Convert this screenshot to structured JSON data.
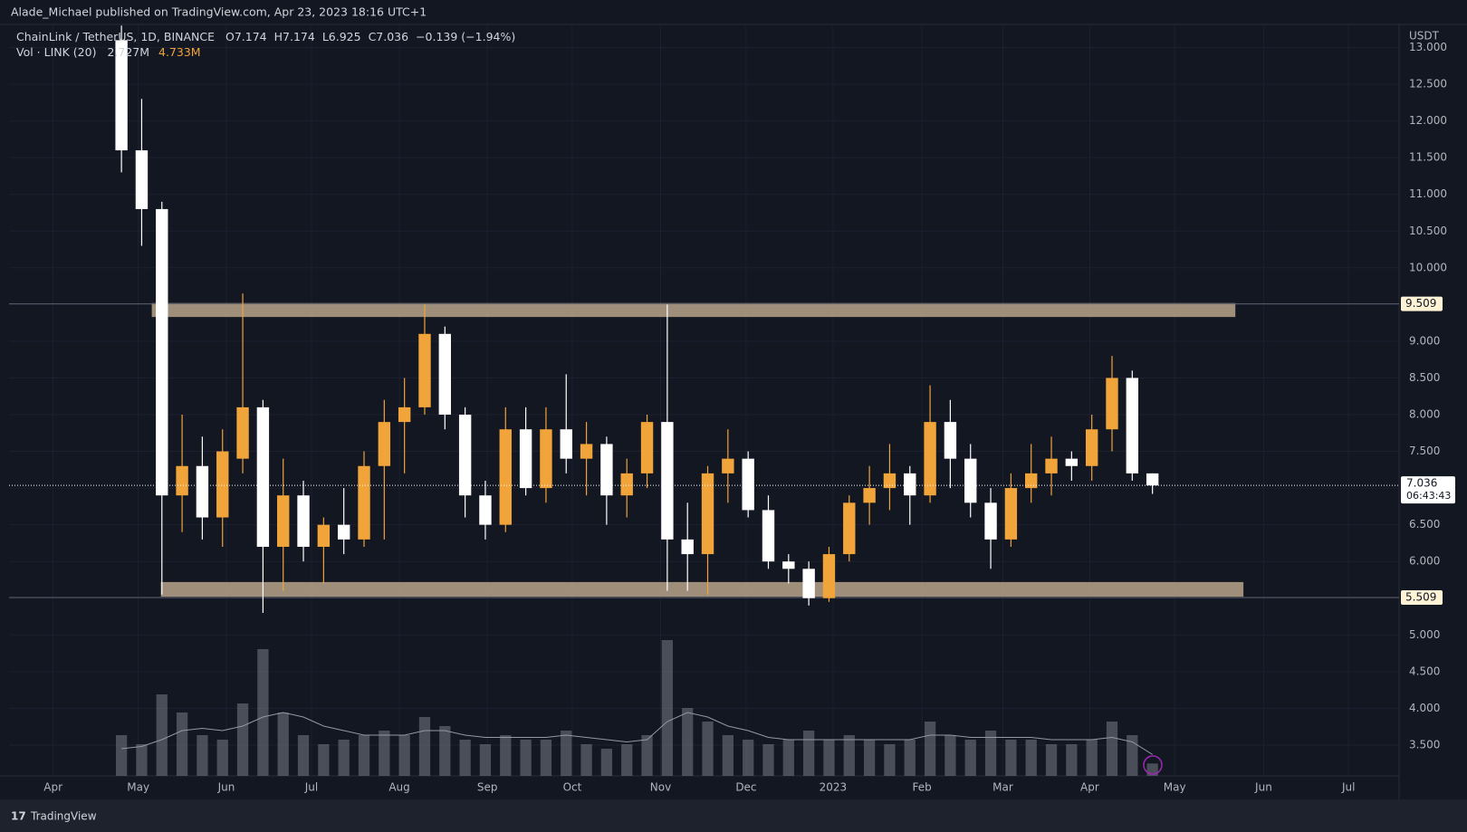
{
  "chart_data": {
    "type": "candlestick",
    "publisher": "Alade_Michael published on TradingView.com, Apr 23, 2023 18:16 UTC+1",
    "legend": {
      "symbol": "ChainLink / TetherUS, 1D, BINANCE",
      "o_label": "O",
      "o": "7.174",
      "h_label": "H",
      "h": "7.174",
      "l_label": "L",
      "l": "6.925",
      "c_label": "C",
      "c": "7.036",
      "change": "−0.139 (−1.94%)",
      "volume_label": "Vol · LINK (20)",
      "volume": "2.727M",
      "volume_ma": "4.733M"
    },
    "unit": "USDT",
    "footer": "TradingView",
    "up_color": "#f0a43a",
    "down_color": "#ffffff",
    "volume_color": "#787b86",
    "ma_color": "#9598a1",
    "zone_color": "#b8a58a",
    "grid": true,
    "open": [
      13.1,
      11.6,
      10.8,
      6.9,
      7.3,
      6.6,
      7.4,
      8.1,
      6.2,
      6.9,
      6.2,
      6.5,
      6.3,
      7.3,
      7.9,
      8.1,
      9.1,
      8.0,
      6.9,
      6.5,
      7.8,
      7.0,
      7.8,
      7.4,
      7.6,
      6.9,
      7.2,
      7.9,
      6.3,
      6.1,
      7.2,
      7.4,
      6.7,
      6.0,
      5.9,
      5.5,
      6.1,
      6.8,
      7.0,
      7.2,
      6.9,
      7.9,
      7.4,
      6.8,
      6.3,
      7.0,
      7.2,
      7.4,
      7.3,
      7.8,
      8.5,
      7.2
    ],
    "high": [
      13.3,
      12.3,
      10.9,
      8.0,
      7.7,
      7.8,
      9.65,
      8.2,
      7.4,
      7.1,
      6.6,
      7.0,
      7.5,
      8.2,
      8.5,
      9.5,
      9.2,
      8.1,
      7.1,
      8.1,
      8.1,
      8.1,
      8.55,
      7.9,
      7.7,
      7.4,
      8.0,
      9.5,
      6.8,
      7.3,
      7.8,
      7.5,
      6.9,
      6.1,
      6.0,
      6.2,
      6.9,
      7.3,
      7.6,
      7.3,
      8.4,
      8.2,
      7.6,
      7.0,
      7.2,
      7.6,
      7.7,
      7.5,
      8.0,
      8.8,
      8.6,
      7.2
    ],
    "low": [
      11.3,
      10.3,
      5.55,
      6.4,
      6.3,
      6.2,
      7.2,
      5.3,
      5.6,
      6.0,
      5.7,
      6.1,
      6.2,
      6.3,
      7.2,
      8.0,
      7.8,
      6.6,
      6.3,
      6.4,
      6.9,
      6.8,
      7.2,
      6.9,
      6.5,
      6.6,
      7.0,
      5.6,
      5.6,
      5.55,
      6.8,
      6.6,
      5.9,
      5.7,
      5.4,
      5.45,
      6.0,
      6.5,
      6.7,
      6.5,
      6.8,
      7.0,
      6.6,
      5.9,
      6.2,
      6.8,
      6.9,
      7.1,
      7.1,
      7.5,
      7.1,
      6.92
    ],
    "close": [
      11.6,
      10.8,
      6.9,
      7.3,
      6.6,
      7.5,
      8.1,
      6.2,
      6.9,
      6.2,
      6.5,
      6.3,
      7.3,
      7.9,
      8.1,
      9.1,
      8.0,
      6.9,
      6.5,
      7.8,
      7.0,
      7.8,
      7.4,
      7.6,
      6.9,
      7.2,
      7.9,
      6.3,
      6.1,
      7.2,
      7.4,
      6.7,
      6.0,
      5.9,
      5.5,
      6.1,
      6.8,
      7.0,
      7.2,
      6.9,
      7.9,
      7.4,
      6.8,
      6.3,
      7.0,
      7.2,
      7.4,
      7.3,
      7.8,
      8.5,
      7.2,
      7.036
    ],
    "volumes": [
      9,
      7,
      18,
      14,
      9,
      8,
      16,
      28,
      14,
      9,
      7,
      8,
      9,
      10,
      9,
      13,
      11,
      8,
      7,
      9,
      8,
      8,
      10,
      7,
      6,
      7,
      9,
      30,
      15,
      12,
      9,
      8,
      7,
      8,
      10,
      8,
      9,
      8,
      7,
      8,
      12,
      9,
      8,
      10,
      8,
      8,
      7,
      7,
      8,
      12,
      9,
      2.727
    ],
    "volume_ma": [
      6,
      6.5,
      8,
      10,
      10.5,
      10,
      11,
      13,
      14,
      13,
      11,
      10,
      9,
      9,
      9,
      10,
      10,
      9,
      8.5,
      8.5,
      8.5,
      8.5,
      9,
      8.5,
      8,
      7.5,
      8,
      12,
      14,
      13,
      11,
      10,
      8.5,
      8,
      8,
      8,
      8,
      8,
      8,
      8,
      9,
      9,
      8.5,
      8.5,
      8.5,
      8.5,
      8,
      8,
      8,
      8.5,
      7.5,
      4.733
    ],
    "vlim": [
      0,
      40
    ],
    "ylim": [
      3.08,
      13.29
    ],
    "yticks": [
      {
        "value": 3.5,
        "label": "3.500"
      },
      {
        "value": 4,
        "label": "4.000"
      },
      {
        "value": 4.5,
        "label": "4.500"
      },
      {
        "value": 5,
        "label": "5.000"
      },
      {
        "value": 5.5,
        "label": "5.500"
      },
      {
        "value": 6,
        "label": "6.000"
      },
      {
        "value": 6.5,
        "label": "6.500"
      },
      {
        "value": 7,
        "label": "7.000"
      },
      {
        "value": 7.5,
        "label": "7.500"
      },
      {
        "value": 8,
        "label": "8.000"
      },
      {
        "value": 8.5,
        "label": "8.500"
      },
      {
        "value": 9,
        "label": "9.000"
      },
      {
        "value": 9.5,
        "label": "9.500"
      },
      {
        "value": 10,
        "label": "10.000"
      },
      {
        "value": 10.5,
        "label": "10.500"
      },
      {
        "value": 11,
        "label": "11.000"
      },
      {
        "value": 11.5,
        "label": "11.500"
      },
      {
        "value": 12,
        "label": "12.000"
      },
      {
        "value": 12.5,
        "label": "12.500"
      },
      {
        "value": 13,
        "label": "13.000"
      }
    ],
    "xlim": [
      -5.56,
      63.2
    ],
    "xticks": [
      {
        "value": -3.38,
        "label": "Apr"
      },
      {
        "value": 0.83,
        "label": "May"
      },
      {
        "value": 5.19,
        "label": "Jun"
      },
      {
        "value": 9.4,
        "label": "Jul"
      },
      {
        "value": 13.75,
        "label": "Aug"
      },
      {
        "value": 18.1,
        "label": "Sep"
      },
      {
        "value": 22.3,
        "label": "Oct"
      },
      {
        "value": 26.67,
        "label": "Nov"
      },
      {
        "value": 30.9,
        "label": "Dec"
      },
      {
        "value": 35.2,
        "label": "2023"
      },
      {
        "value": 39.6,
        "label": "Feb"
      },
      {
        "value": 43.6,
        "label": "Mar"
      },
      {
        "value": 47.9,
        "label": "Apr"
      },
      {
        "value": 52.1,
        "label": "May"
      },
      {
        "value": 56.5,
        "label": "Jun"
      },
      {
        "value": 60.7,
        "label": "Jul"
      }
    ],
    "zones": [
      {
        "low": 9.33,
        "high": 9.52,
        "from": 1.5,
        "to": 55.1
      },
      {
        "low": 5.52,
        "high": 5.72,
        "from": 1.95,
        "to": 55.5
      }
    ],
    "price_lines": [
      9.509,
      5.509
    ],
    "last_price": 7.036,
    "countdown": "06:43:43"
  }
}
